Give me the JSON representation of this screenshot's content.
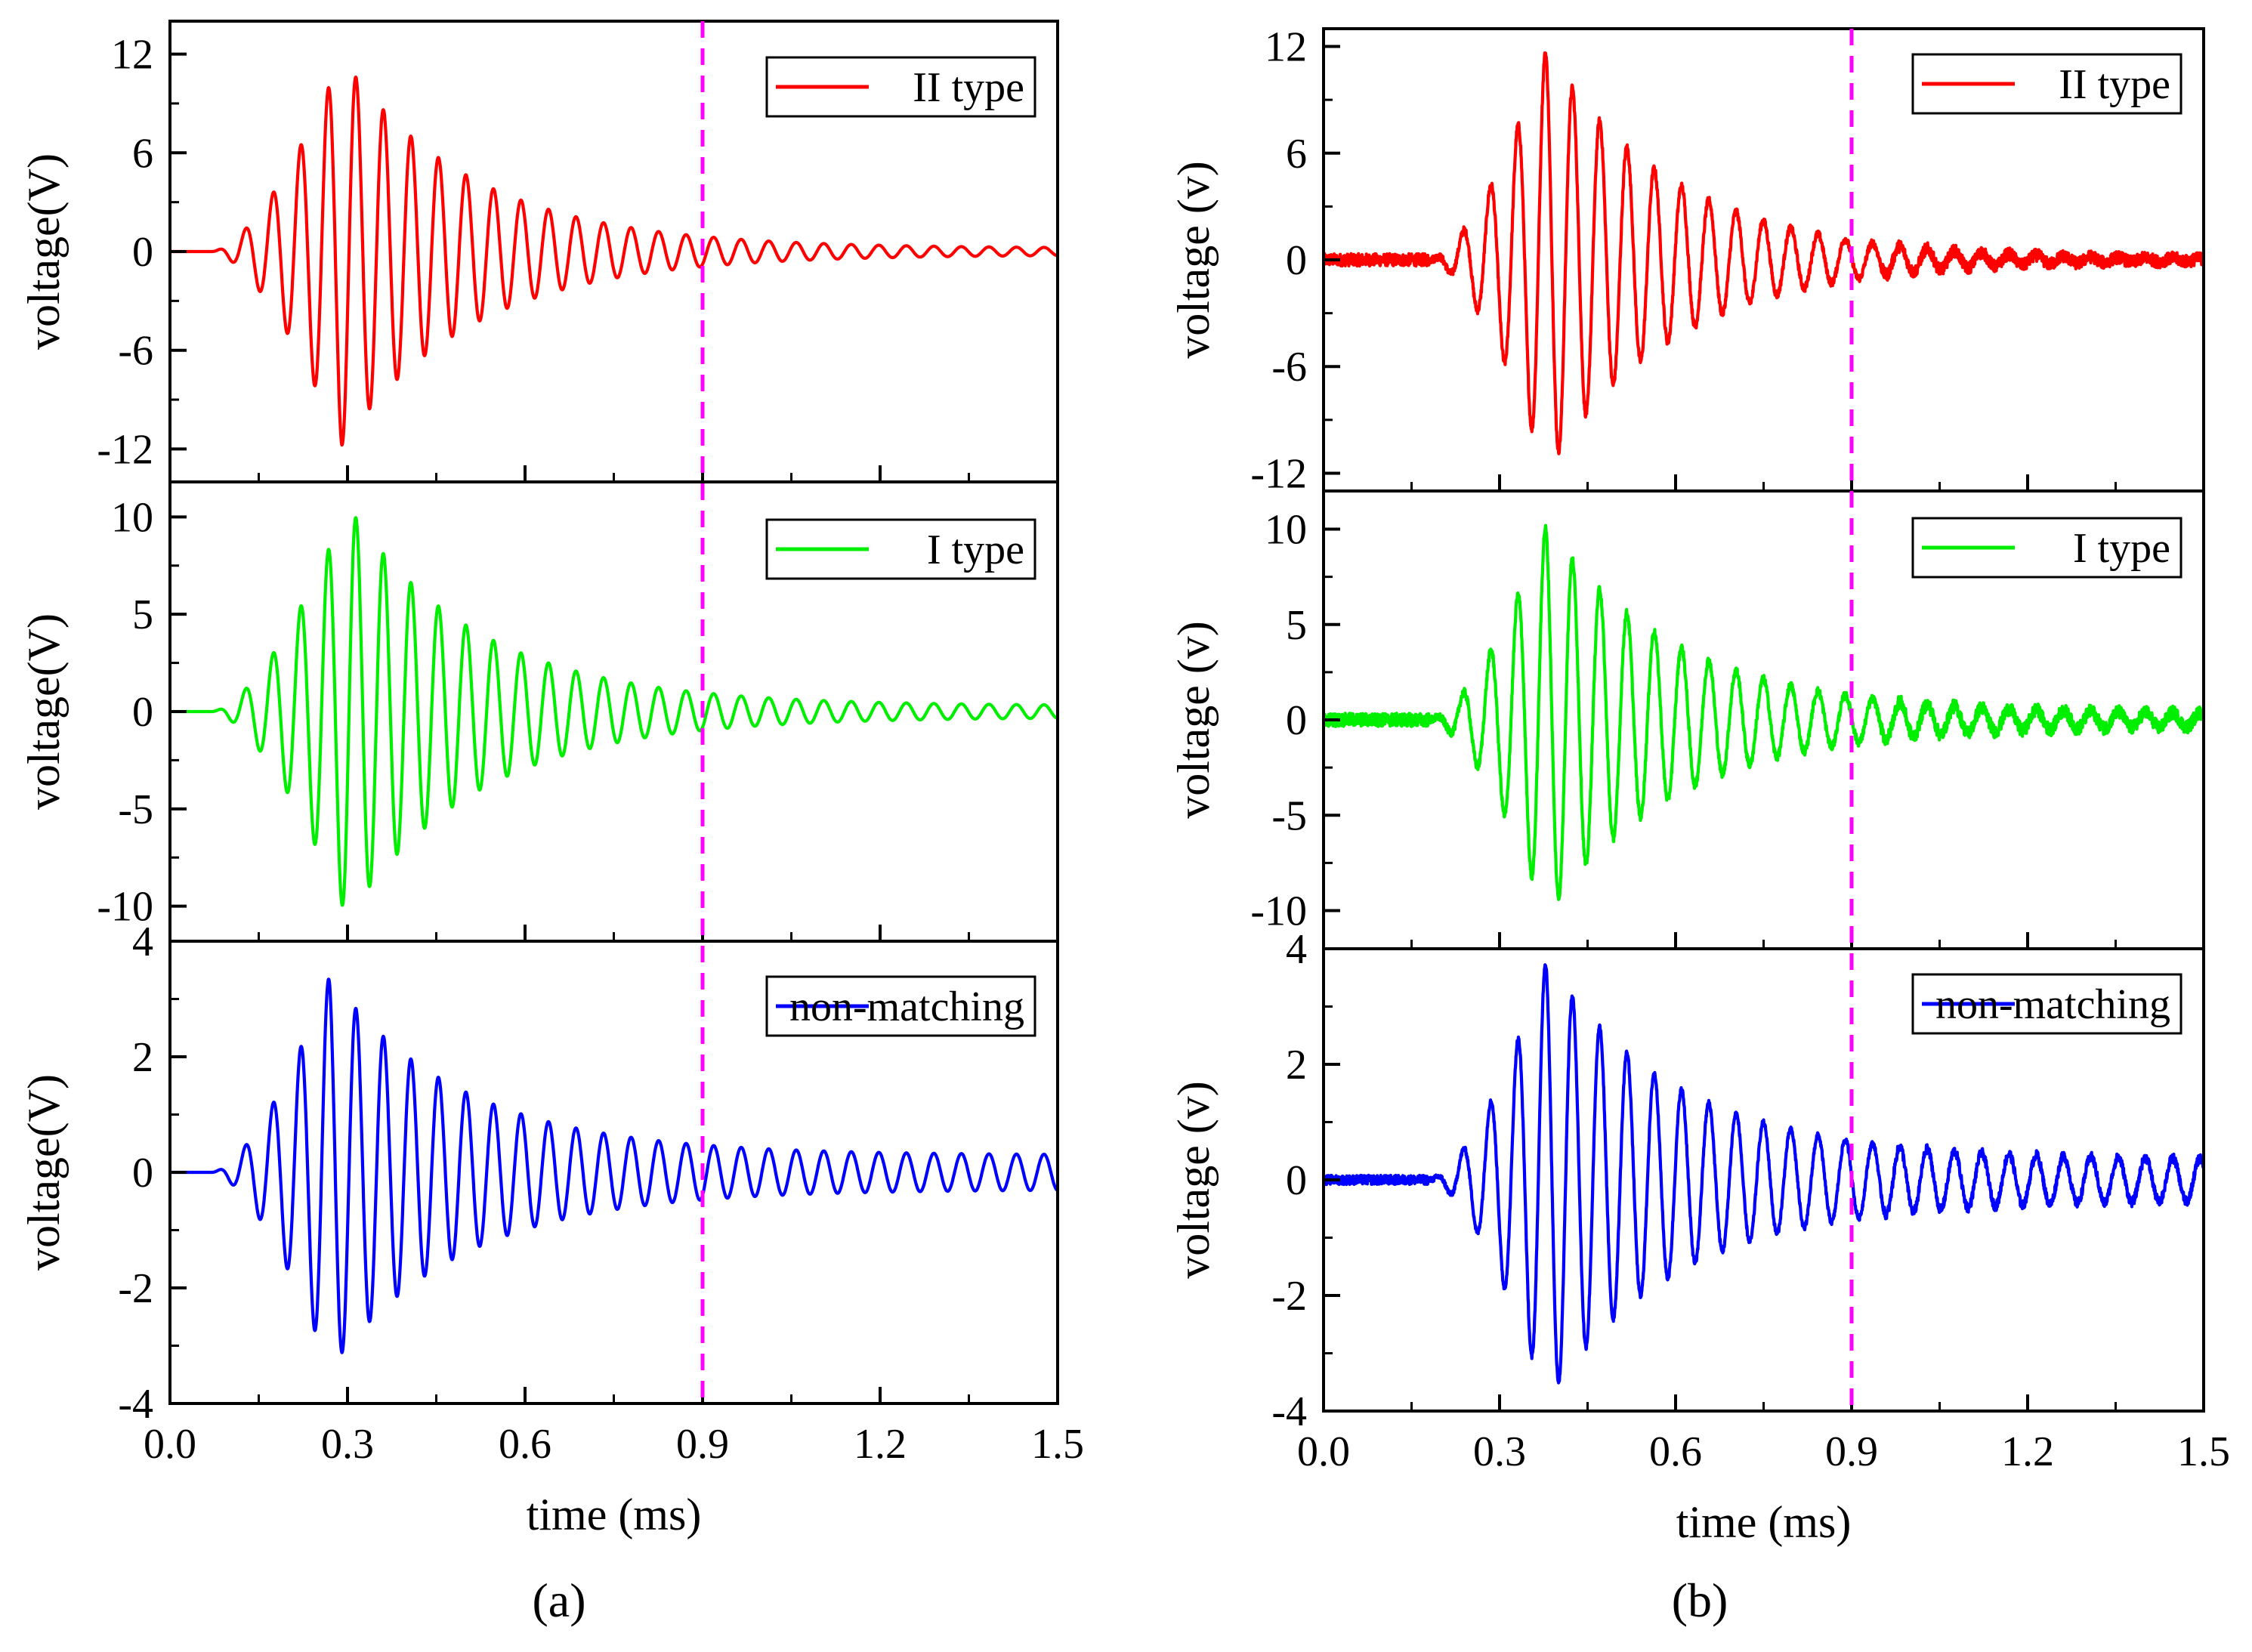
{
  "chart_data": [
    {
      "panel": "a",
      "type": "line",
      "caption": "(a)",
      "xlabel": "time (ms)",
      "xlim": [
        0.0,
        1.5
      ],
      "xticks": [
        "0.0",
        "0.3",
        "0.6",
        "0.9",
        "1.2",
        "1.5"
      ],
      "reference_line": {
        "x": 0.9,
        "style": "dashed",
        "color": "#ff00ff"
      },
      "subplots": [
        {
          "ylabel": "voltage(V)",
          "ylim": [
            -14,
            14
          ],
          "yticks": [
            12,
            6,
            0,
            -6,
            -12
          ],
          "series": [
            {
              "name": "II type",
              "color": "#ff0000",
              "peak": 11.8,
              "onset_ms": 0.07,
              "peak_ms": 0.29,
              "tail_amplitude": 0.2,
              "noise": 0
            }
          ]
        },
        {
          "ylabel": "voltage(V)",
          "ylim": [
            -11.8,
            11.8
          ],
          "yticks": [
            10,
            5,
            0,
            -5,
            -10
          ],
          "series": [
            {
              "name": "I type",
              "color": "#00ee00",
              "peak": 10.6,
              "onset_ms": 0.07,
              "peak_ms": 0.3,
              "tail_amplitude": 0.3,
              "noise": 0
            }
          ]
        },
        {
          "ylabel": "voltage(V)",
          "ylim": [
            -4,
            4
          ],
          "yticks": [
            4,
            2,
            0,
            -2,
            -4
          ],
          "series": [
            {
              "name": "non-matching",
              "color": "#0000ff",
              "peak": 3.4,
              "onset_ms": 0.07,
              "peak_ms": 0.27,
              "tail_amplitude": 0.3,
              "noise": 0
            }
          ]
        }
      ]
    },
    {
      "panel": "b",
      "type": "line",
      "caption": "(b)",
      "xlabel": "time (ms)",
      "xlim": [
        0.0,
        1.5
      ],
      "xticks": [
        "0.0",
        "0.3",
        "0.6",
        "0.9",
        "1.2",
        "1.5"
      ],
      "reference_line": {
        "x": 0.9,
        "style": "dashed",
        "color": "#ff00ff"
      },
      "subplots": [
        {
          "ylabel": "voltage (v)",
          "ylim": [
            -13,
            13
          ],
          "yticks": [
            12,
            6,
            0,
            -6,
            -12
          ],
          "series": [
            {
              "name": "II type",
              "color": "#ff0000",
              "peak": 11.8,
              "onset_ms": 0.18,
              "peak_ms": 0.38,
              "tail_amplitude": 0.0,
              "noise": 0.35
            }
          ]
        },
        {
          "ylabel": "voltage (v)",
          "ylim": [
            -12,
            12
          ],
          "yticks": [
            10,
            5,
            0,
            -5,
            -10
          ],
          "series": [
            {
              "name": "I type",
              "color": "#00ee00",
              "peak": 10.2,
              "onset_ms": 0.18,
              "peak_ms": 0.38,
              "tail_amplitude": 0.3,
              "noise": 0.35
            }
          ]
        },
        {
          "ylabel": "voltage (v)",
          "ylim": [
            -4,
            4
          ],
          "yticks": [
            4,
            2,
            0,
            -2,
            -4
          ],
          "series": [
            {
              "name": "non-matching",
              "color": "#0000ff",
              "peak": 3.8,
              "onset_ms": 0.18,
              "peak_ms": 0.38,
              "tail_amplitude": 0.35,
              "noise": 0.08
            }
          ]
        }
      ]
    }
  ]
}
